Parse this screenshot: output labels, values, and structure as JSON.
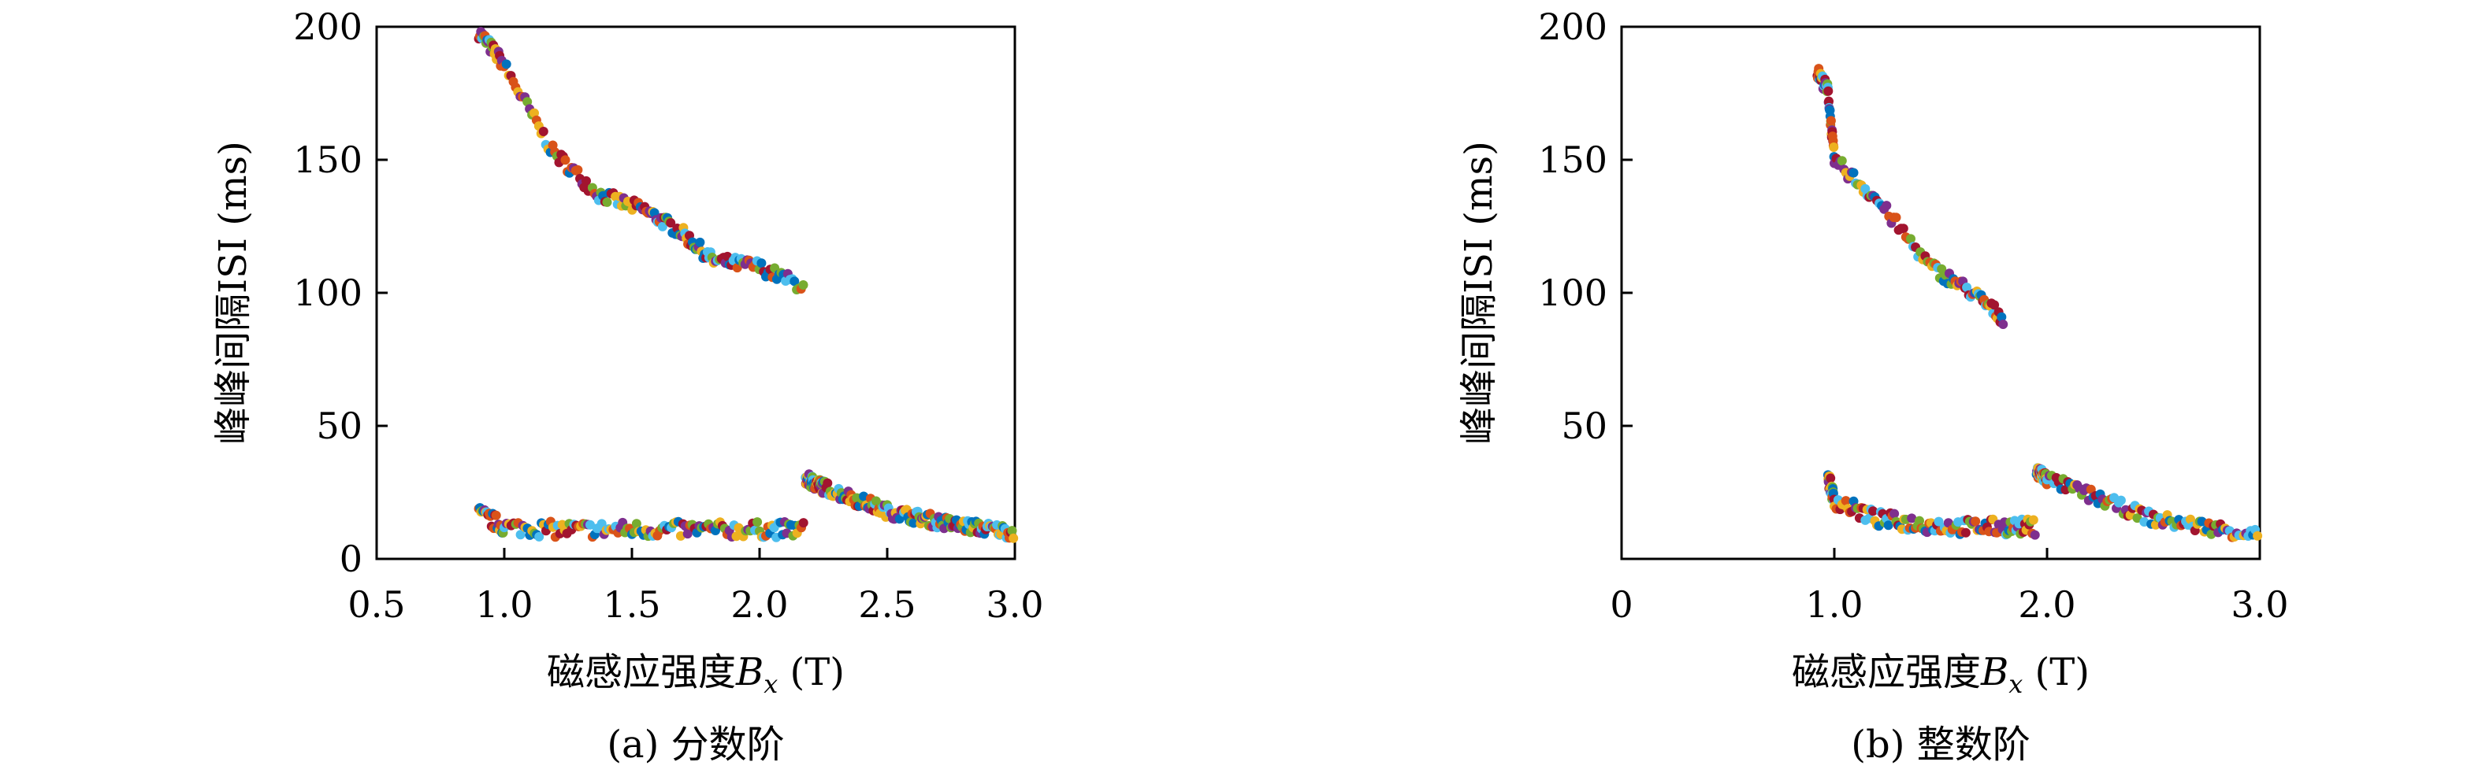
{
  "colors": {
    "axis": "#000000",
    "palette": [
      "#0072BD",
      "#D95319",
      "#EDB120",
      "#7E2F8E",
      "#77AC30",
      "#4DBEEE",
      "#A2142F"
    ]
  },
  "chart_data": [
    {
      "type": "scatter",
      "caption": "(a) 分数阶",
      "xlabel_prefix": "磁感应强度",
      "xlabel_var": "B",
      "xlabel_sub": "x",
      "xlabel_unit": " (T)",
      "ylabel": "峰峰间隔ISI (ms)",
      "xlim": [
        0.5,
        3.0
      ],
      "ylim": [
        0,
        200
      ],
      "xticks": [
        "0.5",
        "1.0",
        "1.5",
        "2.0",
        "2.5",
        "3.0"
      ],
      "yticks": [
        "0",
        "50",
        "100",
        "150",
        "200"
      ],
      "grid": false,
      "branches": [
        {
          "name": "upper",
          "x": [
            0.9,
            0.99,
            1.19,
            1.37,
            1.55,
            1.69,
            1.82,
            1.99,
            2.18
          ],
          "y": [
            198,
            187,
            153,
            137,
            131,
            123,
            112,
            110,
            102
          ]
        },
        {
          "name": "lower",
          "x": [
            0.9,
            1.0,
            1.2,
            1.4,
            1.6,
            1.8,
            2.0,
            2.18
          ],
          "y": [
            17,
            12,
            11,
            11,
            11,
            11,
            11,
            11
          ]
        },
        {
          "name": "tail",
          "x": [
            2.18,
            2.25,
            2.5,
            2.75,
            3.0
          ],
          "y": [
            30,
            27,
            18,
            13,
            10
          ]
        }
      ]
    },
    {
      "type": "scatter",
      "caption": "(b) 整数阶",
      "xlabel_prefix": "磁感应强度",
      "xlabel_var": "B",
      "xlabel_sub": "x",
      "xlabel_unit": " (T)",
      "ylabel": "峰峰间隔ISI (ms)",
      "xlim": [
        0.0,
        3.0
      ],
      "ylim": [
        0,
        200
      ],
      "xticks": [
        "0",
        "1.0",
        "2.0",
        "3.0"
      ],
      "yticks": [
        "50",
        "100",
        "150",
        "200"
      ],
      "grid": false,
      "branches": [
        {
          "name": "upper",
          "x": [
            0.92,
            0.97,
            1.0,
            1.2,
            1.45,
            1.65,
            1.8
          ],
          "y": [
            183,
            176,
            150,
            135,
            110,
            100,
            90
          ]
        },
        {
          "name": "lower",
          "x": [
            0.97,
            1.0,
            1.2,
            1.4,
            1.6,
            1.8,
            1.95
          ],
          "y": [
            31,
            22,
            15,
            13,
            12,
            12,
            12
          ]
        },
        {
          "name": "tail",
          "x": [
            1.95,
            2.0,
            2.5,
            3.0
          ],
          "y": [
            33,
            30,
            15,
            9
          ]
        }
      ]
    }
  ]
}
